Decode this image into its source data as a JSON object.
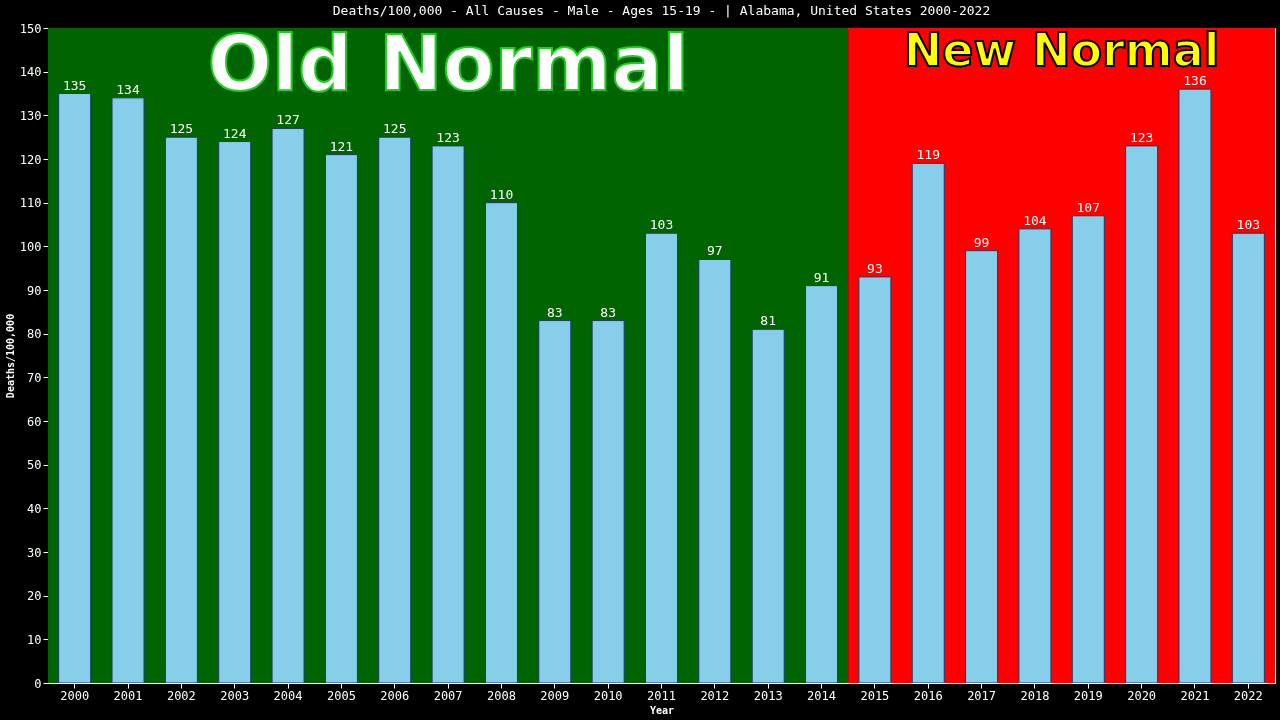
{
  "chart_data": {
    "type": "bar",
    "title": "Deaths/100,000 - All Causes - Male - Ages 15-19 -  | Alabama, United States 2000-2022",
    "xlabel": "Year",
    "ylabel": "Deaths/100,000",
    "categories": [
      "2000",
      "2001",
      "2002",
      "2003",
      "2004",
      "2005",
      "2006",
      "2007",
      "2008",
      "2009",
      "2010",
      "2011",
      "2012",
      "2013",
      "2014",
      "2015",
      "2016",
      "2017",
      "2018",
      "2019",
      "2020",
      "2021",
      "2022"
    ],
    "values": [
      135,
      134,
      125,
      124,
      127,
      121,
      125,
      123,
      110,
      83,
      83,
      103,
      97,
      81,
      91,
      93,
      119,
      99,
      104,
      107,
      123,
      136,
      103
    ],
    "color": "#87ceeb",
    "ylim": [
      0,
      150
    ],
    "yticks": [
      0,
      10,
      20,
      30,
      40,
      50,
      60,
      70,
      80,
      90,
      100,
      110,
      120,
      130,
      140,
      150
    ],
    "grid": false,
    "data_labels": true,
    "bands": [
      {
        "axis": "x",
        "from": "2000",
        "to": "2014",
        "label": "Old Normal",
        "color": "#006400"
      },
      {
        "axis": "x",
        "from": "2015",
        "to": "2022",
        "label": "New Normal",
        "color": "#ff0000"
      }
    ]
  }
}
